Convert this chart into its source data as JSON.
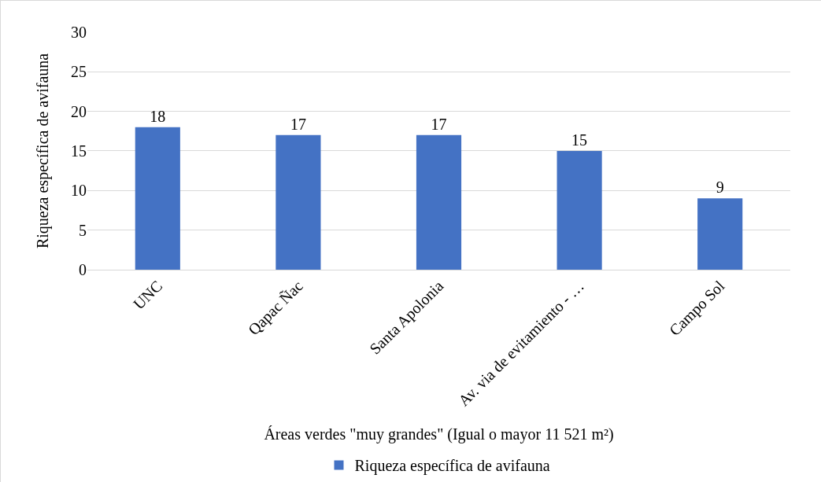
{
  "chart_data": {
    "type": "bar",
    "xlabel": "Áreas verdes \"muy grandes\" (Igual o mayor 11 521 m²)",
    "ylabel": "Riqueza específica de avifauna",
    "categories": [
      "UNC",
      "Qapac Ñac",
      "Santa Apolonia",
      "Av. via de evitamiento - …",
      "Campo Sol"
    ],
    "series": [
      {
        "name": "Riqueza específica de avifauna",
        "color": "#4472c4",
        "values": [
          18,
          17,
          17,
          15,
          9
        ]
      }
    ],
    "ylim": [
      0,
      30
    ],
    "yticks": [
      0,
      5,
      10,
      15,
      20,
      25,
      30
    ],
    "grid": "y",
    "legend": "bottom",
    "data_labels": true
  }
}
